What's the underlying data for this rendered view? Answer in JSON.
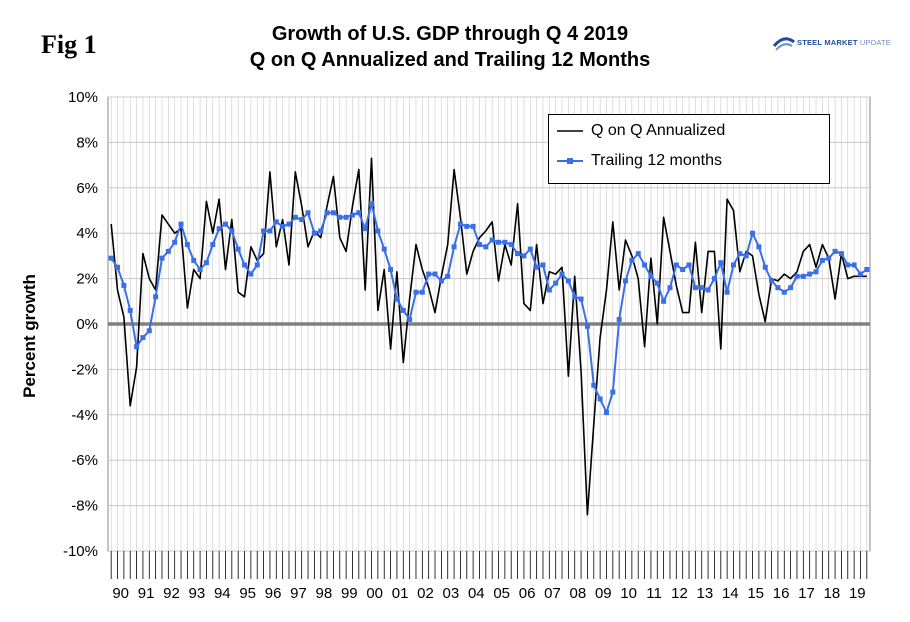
{
  "figure": {
    "fig_label": "Fig 1",
    "title_line1": "Growth of U.S. GDP through Q 4 2019",
    "title_line2": "Q on Q Annualized and Trailing 12 Months",
    "logo": {
      "text_bold": "STEEL MARKET",
      "text_light": "UPDATE",
      "icon": "steel-market-update-logo"
    }
  },
  "colors": {
    "qoq_line": "#000000",
    "trailing_line": "#3b6fe8",
    "zero_line": "#808080",
    "grid": "#c8c8c8"
  },
  "chart_data": {
    "type": "line",
    "title": "Growth of U.S. GDP through Q 4 2019 Q on Q Annualized and Trailing 12 Months",
    "xlabel": "",
    "ylabel": "Percent growth",
    "ylim": [
      -10,
      10
    ],
    "yticks": [
      -10,
      -8,
      -6,
      -4,
      -2,
      0,
      2,
      4,
      6,
      8,
      10
    ],
    "ytick_labels": [
      "-10%",
      "-8%",
      "-6%",
      "-4%",
      "-2%",
      "0%",
      "2%",
      "4%",
      "6%",
      "8%",
      "10%"
    ],
    "year_labels": [
      "90",
      "91",
      "92",
      "93",
      "94",
      "95",
      "96",
      "97",
      "98",
      "99",
      "00",
      "01",
      "02",
      "03",
      "04",
      "05",
      "06",
      "07",
      "08",
      "09",
      "10",
      "11",
      "12",
      "13",
      "14",
      "15",
      "16",
      "17",
      "18",
      "19"
    ],
    "x_start": "1990 Q1",
    "x_end": "2019 Q4",
    "grid": true,
    "legend_position": "top-right",
    "series": [
      {
        "name": "Q on Q Annualized",
        "values": [
          4.4,
          1.5,
          0.3,
          -3.6,
          -1.9,
          3.1,
          2.0,
          1.5,
          4.8,
          4.4,
          4.0,
          4.2,
          0.7,
          2.4,
          2.0,
          5.4,
          4.0,
          5.5,
          2.4,
          4.6,
          1.4,
          1.2,
          3.4,
          2.8,
          3.1,
          6.7,
          3.4,
          4.6,
          2.6,
          6.7,
          5.2,
          3.4,
          4.1,
          3.8,
          5.2,
          6.5,
          3.8,
          3.2,
          5.2,
          6.8,
          1.5,
          7.3,
          0.6,
          2.4,
          -1.1,
          2.3,
          -1.7,
          1.1,
          3.5,
          2.4,
          1.6,
          0.5,
          2.1,
          3.5,
          6.8,
          4.7,
          2.2,
          3.2,
          3.8,
          4.1,
          4.5,
          1.9,
          3.5,
          2.6,
          5.3,
          0.9,
          0.6,
          3.5,
          0.9,
          2.3,
          2.2,
          2.5,
          -2.3,
          2.1,
          -2.1,
          -8.4,
          -4.4,
          -0.6,
          1.5,
          4.5,
          1.5,
          3.7,
          3.0,
          2.0,
          -1.0,
          2.9,
          0.0,
          4.7,
          3.2,
          1.7,
          0.5,
          0.5,
          3.6,
          0.5,
          3.2,
          3.2,
          -1.1,
          5.5,
          5.0,
          2.3,
          3.2,
          3.0,
          1.3,
          0.1,
          2.0,
          1.9,
          2.2,
          2.0,
          2.3,
          3.2,
          3.5,
          2.5,
          3.5,
          2.9,
          1.1,
          3.1,
          2.0,
          2.1,
          2.1,
          2.1
        ],
        "color": "#000000"
      },
      {
        "name": "Trailing 12 months",
        "values": [
          2.9,
          2.5,
          1.7,
          0.6,
          -1.0,
          -0.6,
          -0.3,
          1.2,
          2.9,
          3.2,
          3.6,
          4.4,
          3.5,
          2.8,
          2.4,
          2.7,
          3.5,
          4.2,
          4.4,
          4.1,
          3.3,
          2.6,
          2.2,
          2.6,
          4.1,
          4.1,
          4.5,
          4.3,
          4.4,
          4.7,
          4.6,
          4.9,
          4.0,
          4.1,
          4.9,
          4.9,
          4.7,
          4.7,
          4.8,
          4.9,
          4.2,
          5.3,
          4.1,
          3.3,
          2.4,
          1.1,
          0.6,
          0.2,
          1.4,
          1.4,
          2.2,
          2.2,
          1.9,
          2.1,
          3.4,
          4.4,
          4.3,
          4.3,
          3.5,
          3.4,
          3.7,
          3.6,
          3.6,
          3.5,
          3.1,
          3.0,
          3.3,
          2.5,
          2.6,
          1.5,
          1.8,
          2.2,
          1.9,
          1.2,
          1.1,
          -0.1,
          -2.7,
          -3.3,
          -3.9,
          -3.0,
          0.2,
          1.9,
          2.8,
          3.1,
          2.6,
          2.1,
          1.8,
          1.0,
          1.6,
          2.6,
          2.4,
          2.6,
          1.6,
          1.6,
          1.5,
          2.0,
          2.7,
          1.4,
          2.6,
          3.1,
          3.0,
          4.0,
          3.4,
          2.5,
          1.9,
          1.6,
          1.4,
          1.6,
          2.1,
          2.1,
          2.2,
          2.3,
          2.8,
          2.9,
          3.2,
          3.1,
          2.6,
          2.6,
          2.2,
          2.4
        ],
        "color": "#3b6fe8"
      }
    ]
  }
}
